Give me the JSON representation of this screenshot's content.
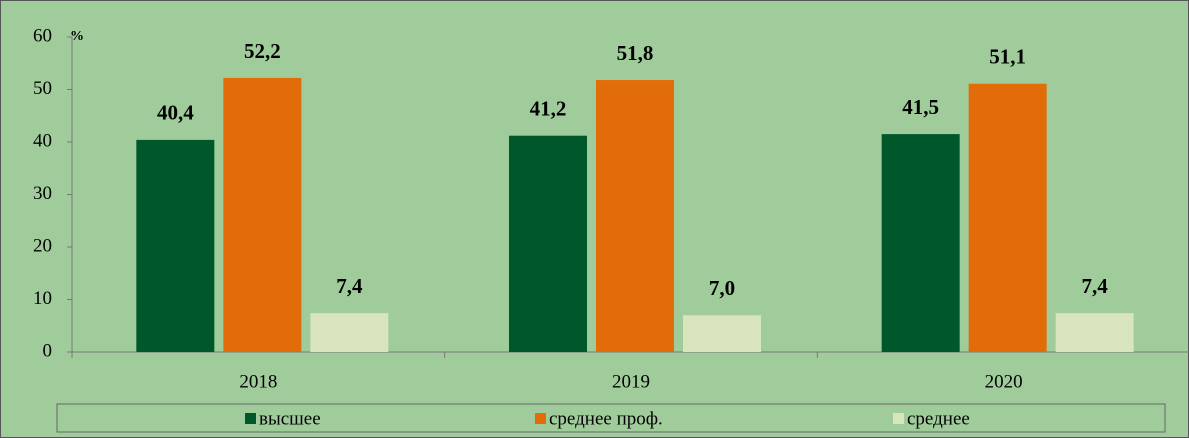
{
  "chart_data": {
    "type": "bar",
    "y_axis_label": "%",
    "categories": [
      "2018",
      "2019",
      "2020"
    ],
    "series": [
      {
        "name": "высшее",
        "color": "#00582a",
        "values": [
          40.4,
          41.2,
          41.5
        ],
        "value_labels": [
          "40,4",
          "41,2",
          "41,5"
        ]
      },
      {
        "name": "среднее проф.",
        "color": "#e36c0a",
        "values": [
          52.2,
          51.8,
          51.1
        ],
        "value_labels": [
          "52,2",
          "51,8",
          "51,1"
        ]
      },
      {
        "name": "среднее",
        "color": "#d8e4bc",
        "values": [
          7.4,
          7.0,
          7.4
        ],
        "value_labels": [
          "7,4",
          "7,0",
          "7,4"
        ]
      }
    ],
    "ylim": [
      0,
      60
    ],
    "yticks": [
      0,
      10,
      20,
      30,
      40,
      50,
      60
    ],
    "grid": false,
    "legend": "bottom"
  }
}
